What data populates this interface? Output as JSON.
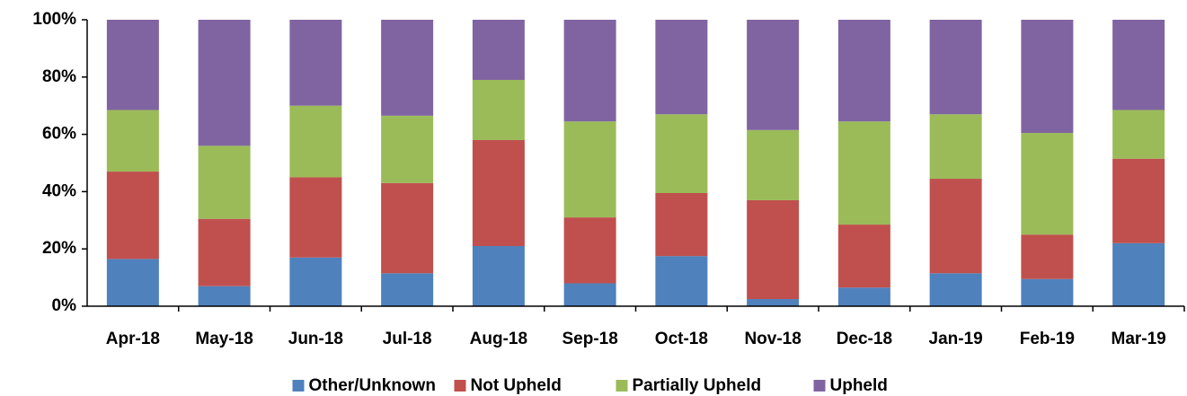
{
  "chart_data": {
    "type": "stacked_bar",
    "categories": [
      "Apr-18",
      "May-18",
      "Jun-18",
      "Jul-18",
      "Aug-18",
      "Sep-18",
      "Oct-18",
      "Nov-18",
      "Dec-18",
      "Jan-19",
      "Feb-19",
      "Mar-19"
    ],
    "series": [
      {
        "name": "Other/Unknown",
        "color": "#4f81bd",
        "values": [
          16.5,
          7,
          17,
          11.5,
          21,
          8,
          17.5,
          2.5,
          6.5,
          11.5,
          9.5,
          22
        ]
      },
      {
        "name": "Not Upheld",
        "color": "#c0504d",
        "values": [
          30.5,
          23.5,
          28,
          31.5,
          37,
          23,
          22,
          34.5,
          22,
          33,
          15.5,
          29.5
        ]
      },
      {
        "name": "Partially Upheld",
        "color": "#9bbb59",
        "values": [
          21.5,
          25.5,
          25,
          23.5,
          21,
          33.5,
          27.5,
          24.5,
          36,
          22.5,
          35.5,
          17
        ]
      },
      {
        "name": "Upheld",
        "color": "#8064a2",
        "values": [
          31.5,
          44,
          30,
          33.5,
          21,
          35.5,
          33,
          38.5,
          35.5,
          33,
          39.5,
          31.5
        ]
      }
    ],
    "ylim": [
      0,
      100
    ],
    "yticks": [
      {
        "value": 0,
        "label": "0%"
      },
      {
        "value": 20,
        "label": "20%"
      },
      {
        "value": 40,
        "label": "40%"
      },
      {
        "value": 60,
        "label": "60%"
      },
      {
        "value": 80,
        "label": "80%"
      },
      {
        "value": 100,
        "label": "100%"
      }
    ],
    "legend": "bottom"
  }
}
